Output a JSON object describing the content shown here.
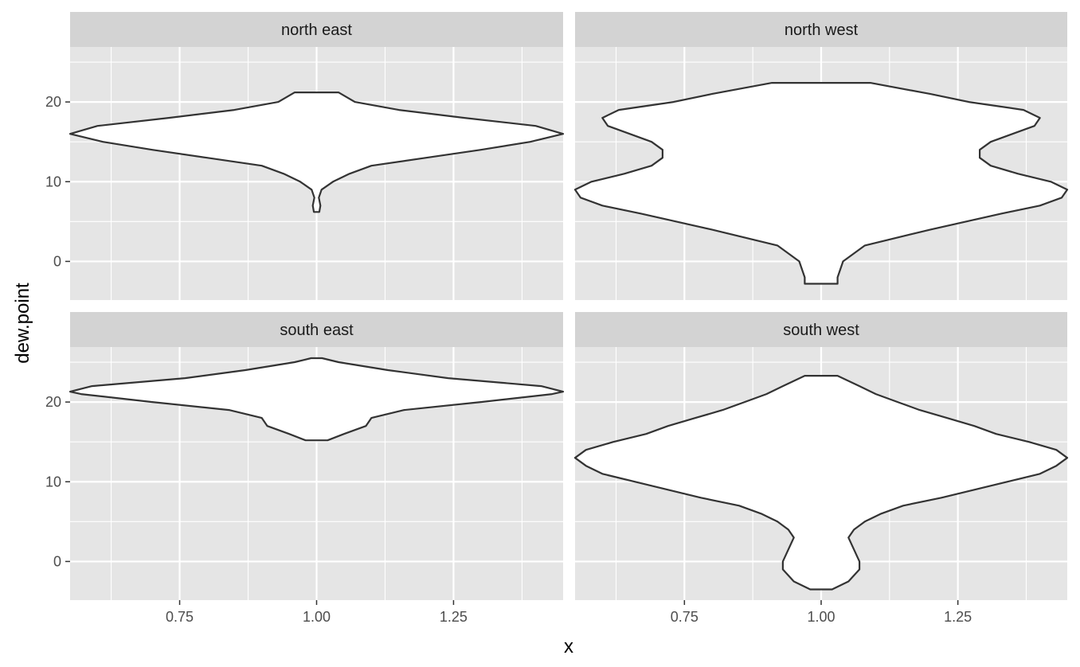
{
  "chart_data": {
    "type": "violin",
    "xlabel": "x",
    "ylabel": "dew.point",
    "x_ticks": [
      "0.75",
      "1.00",
      "1.25"
    ],
    "x_tick_values": [
      0.75,
      1.0,
      1.25
    ],
    "y_ticks": [
      "0",
      "10",
      "20"
    ],
    "y_tick_values": [
      0,
      10,
      20
    ],
    "xlim": [
      0.55,
      1.45
    ],
    "ylim": [
      -4.85,
      26.9
    ],
    "grid": true,
    "colors": {
      "panel_bg": "#E5E5E5",
      "strip_bg": "#D3D3D3",
      "grid": "#FFFFFF",
      "violin_fill": "#FFFFFF",
      "violin_line": "#333333"
    },
    "panels": [
      {
        "label": "north east",
        "violin_x": 1.0,
        "profile": [
          [
            6.2,
            0.005
          ],
          [
            7.0,
            0.007
          ],
          [
            8.0,
            0.004
          ],
          [
            9.0,
            0.009
          ],
          [
            10.0,
            0.03
          ],
          [
            11.0,
            0.06
          ],
          [
            12.0,
            0.1
          ],
          [
            13.0,
            0.2
          ],
          [
            14.0,
            0.3
          ],
          [
            15.0,
            0.39
          ],
          [
            16.0,
            0.45
          ],
          [
            17.0,
            0.4
          ],
          [
            18.0,
            0.27
          ],
          [
            19.0,
            0.15
          ],
          [
            20.0,
            0.07
          ],
          [
            21.2,
            0.04
          ]
        ]
      },
      {
        "label": "north west",
        "violin_x": 1.0,
        "profile": [
          [
            -2.8,
            0.03
          ],
          [
            -2.0,
            0.03
          ],
          [
            0.0,
            0.04
          ],
          [
            2.0,
            0.08
          ],
          [
            4.0,
            0.2
          ],
          [
            6.0,
            0.33
          ],
          [
            7.0,
            0.4
          ],
          [
            8.0,
            0.44
          ],
          [
            9.0,
            0.45
          ],
          [
            10.0,
            0.42
          ],
          [
            11.0,
            0.36
          ],
          [
            12.0,
            0.31
          ],
          [
            13.0,
            0.29
          ],
          [
            14.0,
            0.29
          ],
          [
            15.0,
            0.31
          ],
          [
            16.0,
            0.35
          ],
          [
            17.0,
            0.39
          ],
          [
            18.0,
            0.4
          ],
          [
            19.0,
            0.37
          ],
          [
            20.0,
            0.27
          ],
          [
            21.0,
            0.2
          ],
          [
            22.4,
            0.09
          ]
        ]
      },
      {
        "label": "south east",
        "violin_x": 1.0,
        "profile": [
          [
            15.2,
            0.02
          ],
          [
            16.0,
            0.05
          ],
          [
            17.0,
            0.09
          ],
          [
            18.0,
            0.1
          ],
          [
            19.0,
            0.16
          ],
          [
            20.0,
            0.3
          ],
          [
            21.0,
            0.43
          ],
          [
            21.3,
            0.45
          ],
          [
            22.0,
            0.41
          ],
          [
            23.0,
            0.24
          ],
          [
            24.0,
            0.13
          ],
          [
            25.0,
            0.04
          ],
          [
            25.5,
            0.01
          ]
        ]
      },
      {
        "label": "south west",
        "violin_x": 1.0,
        "profile": [
          [
            -3.5,
            0.02
          ],
          [
            -2.5,
            0.05
          ],
          [
            -1.0,
            0.07
          ],
          [
            0.0,
            0.07
          ],
          [
            1.5,
            0.06
          ],
          [
            3.0,
            0.05
          ],
          [
            4.0,
            0.06
          ],
          [
            5.0,
            0.08
          ],
          [
            6.0,
            0.11
          ],
          [
            7.0,
            0.15
          ],
          [
            8.0,
            0.22
          ],
          [
            9.0,
            0.28
          ],
          [
            10.0,
            0.34
          ],
          [
            11.0,
            0.4
          ],
          [
            12.0,
            0.43
          ],
          [
            13.0,
            0.45
          ],
          [
            14.0,
            0.43
          ],
          [
            15.0,
            0.38
          ],
          [
            16.0,
            0.32
          ],
          [
            17.0,
            0.28
          ],
          [
            18.0,
            0.23
          ],
          [
            19.0,
            0.18
          ],
          [
            20.0,
            0.14
          ],
          [
            21.0,
            0.1
          ],
          [
            22.0,
            0.07
          ],
          [
            23.3,
            0.03
          ]
        ]
      }
    ]
  }
}
